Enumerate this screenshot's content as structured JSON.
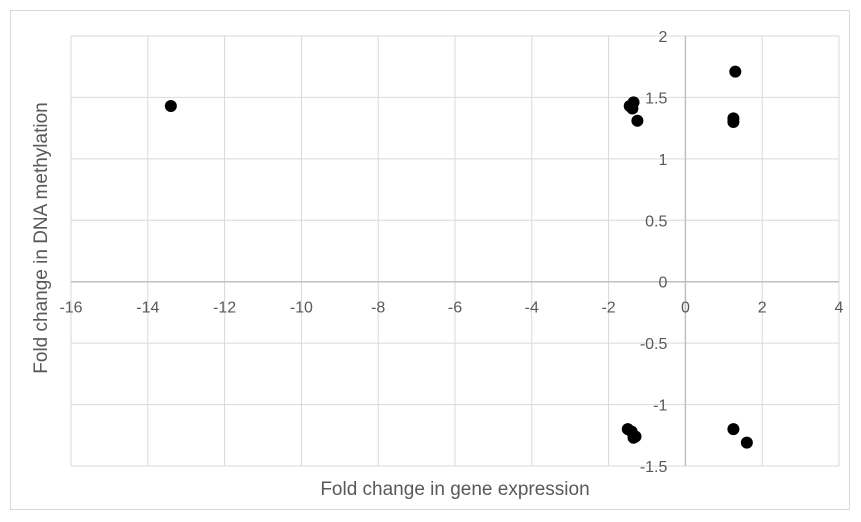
{
  "chart_data": {
    "type": "scatter",
    "title": "",
    "xlabel": "Fold change in gene expression",
    "ylabel": "Fold change in DNA methylation",
    "xlim": [
      -16,
      4
    ],
    "ylim": [
      -1.5,
      2
    ],
    "x_ticks": [
      -16,
      -14,
      -12,
      -10,
      -8,
      -6,
      -4,
      -2,
      0,
      2,
      4
    ],
    "y_ticks": [
      -1.5,
      -1,
      -0.5,
      0,
      0.5,
      1,
      1.5,
      2
    ],
    "x_tick_labels": [
      "-16",
      "-14",
      "-12",
      "-10",
      "-8",
      "-6",
      "-4",
      "-2",
      "0",
      "2",
      "4"
    ],
    "y_tick_labels": [
      "-1.5",
      "-1",
      "-0.5",
      "0",
      "0.5",
      "1",
      "1.5",
      "2"
    ],
    "grid": true,
    "legend": "none",
    "marker_color": "#000000",
    "grid_color": "#d9d9d9",
    "axis_color": "#bfbfbf",
    "series": [
      {
        "points": [
          {
            "x": -13.4,
            "y": 1.43
          },
          {
            "x": -1.35,
            "y": 1.46
          },
          {
            "x": -1.45,
            "y": 1.43
          },
          {
            "x": -1.38,
            "y": 1.41
          },
          {
            "x": -1.25,
            "y": 1.31
          },
          {
            "x": 1.3,
            "y": 1.71
          },
          {
            "x": 1.25,
            "y": 1.33
          },
          {
            "x": 1.25,
            "y": 1.3
          },
          {
            "x": -1.5,
            "y": -1.2
          },
          {
            "x": -1.4,
            "y": -1.22
          },
          {
            "x": -1.35,
            "y": -1.27
          },
          {
            "x": -1.3,
            "y": -1.26
          },
          {
            "x": 1.25,
            "y": -1.2
          },
          {
            "x": 1.6,
            "y": -1.31
          }
        ]
      }
    ]
  }
}
